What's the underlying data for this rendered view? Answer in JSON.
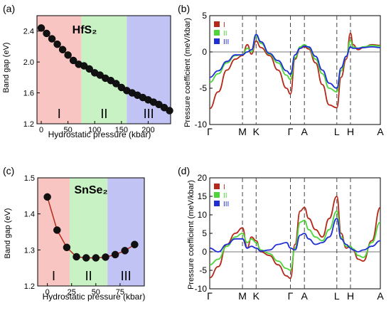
{
  "chart_data": [
    {
      "panel": "(a)",
      "type": "scatter",
      "title": "HfS₂",
      "xlabel": "Hydrostatic pressure (kbar)",
      "ylabel": "Band gap (eV)",
      "xlim": [
        -8,
        242
      ],
      "ylim": [
        1.2,
        2.6
      ],
      "xticks": [
        0,
        50,
        100,
        150,
        200
      ],
      "yticks": [
        1.2,
        1.6,
        2.0,
        2.4
      ],
      "regions": [
        {
          "label": "I",
          "from": -8,
          "to": 75,
          "color": "#f8c5c2"
        },
        {
          "label": "II",
          "from": 75,
          "to": 160,
          "color": "#c9f2c4"
        },
        {
          "label": "III",
          "from": 160,
          "to": 242,
          "color": "#c2c3f5"
        }
      ],
      "points": [
        {
          "x": 0,
          "y": 2.44
        },
        {
          "x": 10,
          "y": 2.37
        },
        {
          "x": 20,
          "y": 2.3
        },
        {
          "x": 30,
          "y": 2.23
        },
        {
          "x": 40,
          "y": 2.16
        },
        {
          "x": 50,
          "y": 2.09
        },
        {
          "x": 60,
          "y": 2.02
        },
        {
          "x": 70,
          "y": 1.97
        },
        {
          "x": 80,
          "y": 1.95
        },
        {
          "x": 90,
          "y": 1.91
        },
        {
          "x": 100,
          "y": 1.86
        },
        {
          "x": 110,
          "y": 1.83
        },
        {
          "x": 120,
          "y": 1.79
        },
        {
          "x": 130,
          "y": 1.76
        },
        {
          "x": 140,
          "y": 1.72
        },
        {
          "x": 150,
          "y": 1.67
        },
        {
          "x": 160,
          "y": 1.63
        },
        {
          "x": 170,
          "y": 1.6
        },
        {
          "x": 180,
          "y": 1.57
        },
        {
          "x": 190,
          "y": 1.54
        },
        {
          "x": 200,
          "y": 1.51
        },
        {
          "x": 210,
          "y": 1.48
        },
        {
          "x": 220,
          "y": 1.45
        },
        {
          "x": 230,
          "y": 1.41
        },
        {
          "x": 240,
          "y": 1.37
        }
      ]
    },
    {
      "panel": "(b)",
      "type": "line",
      "xlabel": "",
      "ylabel": "Pressure coefficient (meV/kbar)",
      "ylim": [
        -10,
        5
      ],
      "yticks": [
        -10,
        -5,
        0,
        5
      ],
      "kpoints": [
        "Γ",
        "M",
        "K",
        "Γ",
        "A",
        "L",
        "H",
        "A"
      ],
      "kpos": [
        0,
        0.192,
        0.272,
        0.473,
        0.555,
        0.745,
        0.825,
        1.0
      ],
      "legend": [
        "I",
        "II",
        "III"
      ],
      "series": [
        {
          "name": "I",
          "color": "#b5291b",
          "x": [
            0,
            0.05,
            0.1,
            0.15,
            0.192,
            0.22,
            0.245,
            0.272,
            0.3,
            0.35,
            0.4,
            0.45,
            0.473,
            0.5,
            0.53,
            0.555,
            0.58,
            0.62,
            0.66,
            0.7,
            0.745,
            0.77,
            0.8,
            0.825,
            0.84,
            0.87,
            0.9,
            0.95,
            1.0
          ],
          "values": [
            -7.8,
            -5.5,
            -2.5,
            -1.0,
            -0.5,
            1.0,
            -0.3,
            1.5,
            0.6,
            -0.5,
            -2.5,
            -5.0,
            -5.8,
            -1.0,
            0.5,
            0.7,
            0.4,
            -1.5,
            -4.5,
            -7.3,
            -7.7,
            -3.5,
            -1.0,
            2.6,
            1.0,
            0.3,
            0.6,
            1.0,
            0.9
          ]
        },
        {
          "name": "II",
          "color": "#4cd63a",
          "x": [
            0,
            0.05,
            0.1,
            0.15,
            0.192,
            0.22,
            0.245,
            0.272,
            0.3,
            0.35,
            0.4,
            0.45,
            0.473,
            0.5,
            0.53,
            0.555,
            0.58,
            0.62,
            0.66,
            0.7,
            0.745,
            0.77,
            0.8,
            0.825,
            0.84,
            0.87,
            0.9,
            0.95,
            1.0
          ],
          "values": [
            -4.2,
            -3.0,
            -1.5,
            -0.5,
            -0.4,
            0.5,
            0.0,
            2.2,
            1.2,
            -0.3,
            -1.5,
            -3.2,
            -3.8,
            -0.8,
            0.7,
            1.0,
            0.6,
            -1.0,
            -3.0,
            -5.0,
            -5.5,
            -2.6,
            -0.6,
            1.6,
            0.7,
            0.5,
            0.7,
            0.9,
            0.8
          ]
        },
        {
          "name": "III",
          "color": "#1f2fd6",
          "x": [
            0,
            0.05,
            0.1,
            0.15,
            0.192,
            0.22,
            0.245,
            0.272,
            0.3,
            0.35,
            0.4,
            0.45,
            0.473,
            0.5,
            0.53,
            0.555,
            0.58,
            0.62,
            0.66,
            0.7,
            0.745,
            0.77,
            0.8,
            0.825,
            0.84,
            0.87,
            0.9,
            0.95,
            1.0
          ],
          "values": [
            -3.5,
            -2.6,
            -1.3,
            -0.4,
            -0.4,
            0.0,
            0.3,
            2.4,
            1.4,
            -0.2,
            -1.2,
            -2.6,
            -3.1,
            -0.4,
            0.5,
            0.8,
            0.7,
            -0.6,
            -2.5,
            -4.3,
            -5.0,
            -2.2,
            -0.6,
            0.7,
            0.5,
            0.5,
            0.6,
            0.7,
            0.6
          ]
        }
      ]
    },
    {
      "panel": "(c)",
      "type": "scatter",
      "title": "SnSe₂",
      "xlabel": "Hydrostatic pressure (kbar)",
      "ylabel": "Band gap (eV)",
      "xlim": [
        -10,
        100
      ],
      "ylim": [
        1.2,
        1.5
      ],
      "xticks": [
        0,
        25,
        50,
        75
      ],
      "yticks": [
        1.2,
        1.3,
        1.4,
        1.5
      ],
      "regions": [
        {
          "label": "I",
          "from": -10,
          "to": 23,
          "color": "#f8c5c2"
        },
        {
          "label": "II",
          "from": 23,
          "to": 62,
          "color": "#c9f2c4"
        },
        {
          "label": "III",
          "from": 62,
          "to": 100,
          "color": "#c2c3f5"
        }
      ],
      "points": [
        {
          "x": 0,
          "y": 1.447
        },
        {
          "x": 10,
          "y": 1.355
        },
        {
          "x": 20,
          "y": 1.307
        },
        {
          "x": 30,
          "y": 1.281
        },
        {
          "x": 40,
          "y": 1.278
        },
        {
          "x": 50,
          "y": 1.278
        },
        {
          "x": 60,
          "y": 1.28
        },
        {
          "x": 70,
          "y": 1.287
        },
        {
          "x": 80,
          "y": 1.298
        },
        {
          "x": 90,
          "y": 1.315
        }
      ]
    },
    {
      "panel": "(d)",
      "type": "line",
      "xlabel": "",
      "ylabel": "Pressure coefficient (meV/kbar)",
      "ylim": [
        -10,
        20
      ],
      "yticks": [
        -10,
        -5,
        0,
        5,
        10,
        15,
        20
      ],
      "kpoints": [
        "Γ",
        "M",
        "K",
        "Γ",
        "A",
        "L",
        "H",
        "A"
      ],
      "kpos": [
        0,
        0.192,
        0.272,
        0.473,
        0.555,
        0.745,
        0.825,
        1.0
      ],
      "legend": [
        "I",
        "II",
        "III"
      ],
      "series": [
        {
          "name": "I",
          "color": "#b5291b",
          "x": [
            0,
            0.05,
            0.1,
            0.15,
            0.192,
            0.22,
            0.245,
            0.272,
            0.3,
            0.35,
            0.4,
            0.45,
            0.473,
            0.5,
            0.53,
            0.555,
            0.58,
            0.62,
            0.66,
            0.7,
            0.745,
            0.77,
            0.8,
            0.825,
            0.84,
            0.87,
            0.9,
            0.95,
            1.0
          ],
          "values": [
            -7.0,
            -4.0,
            2.0,
            5.0,
            6.5,
            1.0,
            4.0,
            3.0,
            0.0,
            -1.0,
            -3.5,
            -6.5,
            -7.2,
            2.0,
            11.0,
            12.0,
            9.0,
            6.0,
            4.0,
            9.0,
            15.0,
            5.0,
            1.0,
            1.5,
            0.5,
            -2.0,
            -2.5,
            3.0,
            12.0
          ]
        },
        {
          "name": "II",
          "color": "#4cd63a",
          "x": [
            0,
            0.05,
            0.1,
            0.15,
            0.192,
            0.22,
            0.245,
            0.272,
            0.3,
            0.35,
            0.4,
            0.45,
            0.473,
            0.5,
            0.53,
            0.555,
            0.58,
            0.62,
            0.66,
            0.7,
            0.745,
            0.77,
            0.8,
            0.825,
            0.84,
            0.87,
            0.9,
            0.95,
            1.0
          ],
          "values": [
            -3.5,
            -2.0,
            1.5,
            4.0,
            5.0,
            2.5,
            3.5,
            2.5,
            0.5,
            -0.5,
            -2.5,
            -4.5,
            -5.0,
            1.0,
            8.0,
            8.5,
            6.0,
            4.0,
            3.0,
            6.0,
            11.0,
            4.0,
            1.5,
            1.5,
            0.8,
            -1.0,
            -1.5,
            2.5,
            8.0
          ]
        },
        {
          "name": "III",
          "color": "#1f2fd6",
          "x": [
            0,
            0.05,
            0.1,
            0.15,
            0.192,
            0.22,
            0.245,
            0.272,
            0.3,
            0.35,
            0.4,
            0.45,
            0.473,
            0.5,
            0.53,
            0.555,
            0.58,
            0.62,
            0.66,
            0.7,
            0.745,
            0.77,
            0.8,
            0.825,
            0.84,
            0.87,
            0.9,
            0.95,
            1.0
          ],
          "values": [
            1.0,
            0.0,
            2.0,
            3.5,
            3.5,
            1.0,
            1.5,
            1.0,
            0.2,
            0.5,
            2.0,
            2.5,
            1.0,
            0.5,
            4.5,
            5.0,
            3.5,
            2.0,
            2.5,
            4.0,
            9.0,
            3.5,
            2.0,
            1.0,
            0.5,
            0.0,
            0.5,
            1.5,
            3.0
          ]
        }
      ]
    }
  ]
}
